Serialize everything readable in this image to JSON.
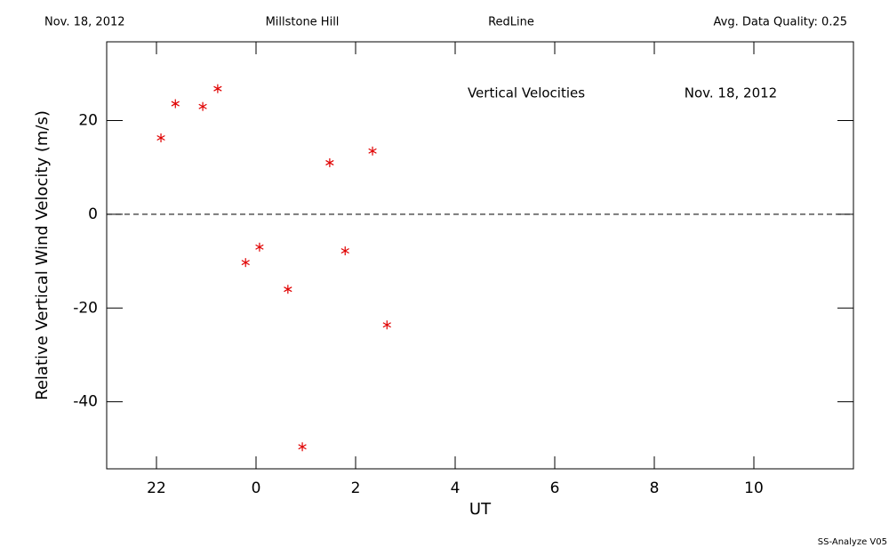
{
  "chart_data": {
    "type": "scatter",
    "header": {
      "date": "Nov. 18, 2012",
      "site": "Millstone Hill",
      "line": "RedLine",
      "quality": "Avg. Data Quality: 0.25"
    },
    "title": "Vertical Velocities",
    "subtitle": "Nov. 18, 2012",
    "x_label": "UT",
    "y_label": "Relative Vertical Wind Velocity (m/s)",
    "footer": "SS-Analyze V05",
    "xlim": [
      21,
      36
    ],
    "xticks": [
      22,
      {
        "value": 24,
        "label": "0"
      },
      {
        "value": 26,
        "label": "2"
      },
      {
        "value": 28,
        "label": "4"
      },
      {
        "value": 30,
        "label": "6"
      },
      {
        "value": 32,
        "label": "8"
      },
      {
        "value": 34,
        "label": "10"
      }
    ],
    "ylim": [
      -54.3,
      36.8
    ],
    "yticks": [
      -40,
      -20,
      0,
      20
    ],
    "reference_line": 0,
    "series": [
      {
        "color": "#e00000",
        "x": [
          22.09,
          22.38,
          22.93,
          23.23,
          23.79,
          24.07,
          24.64,
          24.93,
          25.48,
          25.79,
          26.34,
          26.63
        ],
        "values": [
          16.3,
          23.6,
          23.0,
          26.8,
          -10.3,
          -7.0,
          -16.0,
          -49.6,
          11.0,
          -7.8,
          13.5,
          -23.6
        ]
      }
    ]
  }
}
